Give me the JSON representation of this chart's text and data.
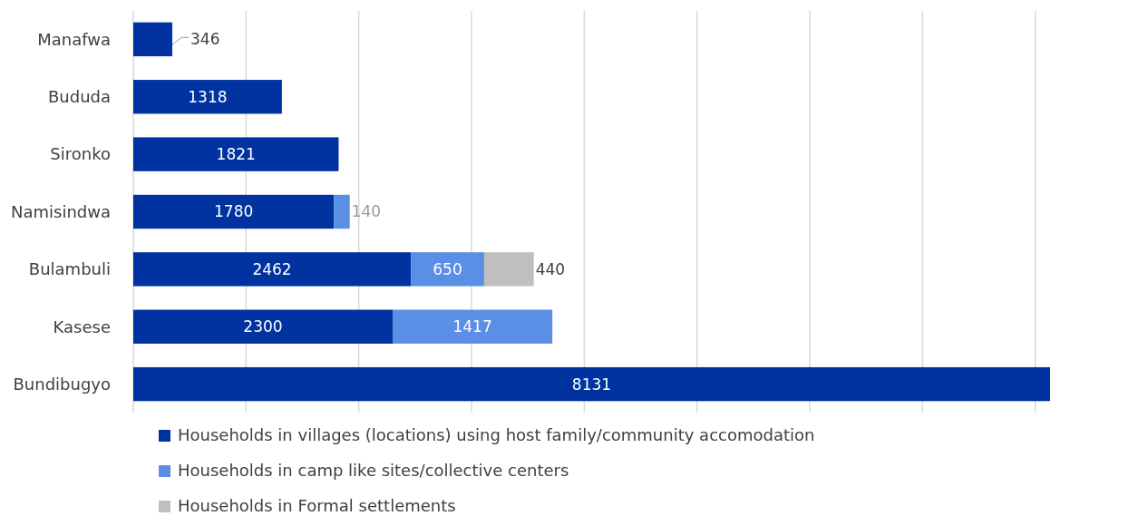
{
  "chart_data": {
    "type": "bar",
    "orientation": "horizontal",
    "stacked": true,
    "categories": [
      "Manafwa",
      "Bududa",
      "Sironko",
      "Namisindwa",
      "Bulambuli",
      "Kasese",
      "Bundibugyo"
    ],
    "series": [
      {
        "name": "Households in villages (locations) using host family/community accomodation",
        "color": "#0033a0",
        "values": [
          346,
          1318,
          1821,
          1780,
          2462,
          2300,
          8131
        ],
        "value_labels": [
          "346",
          "1318",
          "1821",
          "1780",
          "2462",
          "2300",
          "8131"
        ]
      },
      {
        "name": "Households in camp like sites/collective centers",
        "color": "#5b8fe6",
        "values": [
          null,
          null,
          null,
          140,
          650,
          1417,
          null
        ],
        "value_labels": [
          null,
          null,
          null,
          "140",
          "650",
          "1417",
          null
        ]
      },
      {
        "name": "Households in Formal settlements",
        "color": "#bfbfbf",
        "values": [
          null,
          null,
          null,
          null,
          440,
          null,
          null
        ],
        "value_labels": [
          null,
          null,
          null,
          null,
          "440",
          null,
          null
        ]
      }
    ],
    "xticks": [
      {
        "value": 0,
        "label": null
      },
      {
        "value": 1000,
        "label": null
      },
      {
        "value": 2000,
        "label": null
      },
      {
        "value": 3000,
        "label": null
      },
      {
        "value": 4000,
        "label": null
      },
      {
        "value": 5000,
        "label": null
      },
      {
        "value": 6000,
        "label": null
      },
      {
        "value": 7000,
        "label": null
      },
      {
        "value": 8000,
        "label": null
      }
    ],
    "tick_labels": "y",
    "grid": "x",
    "legend": "bottom"
  }
}
